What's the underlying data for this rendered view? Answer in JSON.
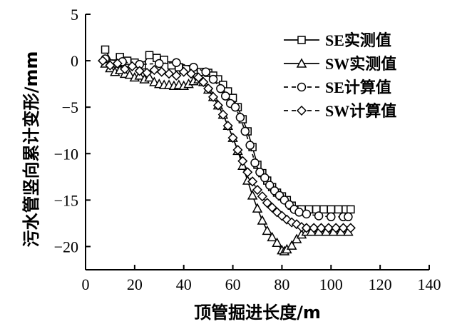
{
  "chart_data": {
    "type": "line",
    "xlabel": "顶管掘进长度/m",
    "ylabel": "污水管竖向累计变形/mm",
    "xlim": [
      0,
      140
    ],
    "ylim": [
      -22.5,
      5
    ],
    "xticks": [
      "0",
      "20",
      "40",
      "60",
      "80",
      "100",
      "120",
      "140"
    ],
    "yticks": [
      "5",
      "0",
      "−5",
      "−10",
      "−15",
      "−20"
    ],
    "xtick_values": [
      0,
      20,
      40,
      60,
      80,
      100,
      120,
      140
    ],
    "ytick_values": [
      5,
      0,
      -5,
      -10,
      -15,
      -20
    ],
    "grid": false,
    "legend_position": "top-right",
    "series": [
      {
        "name": "SE实测值",
        "marker": "square",
        "line": "solid",
        "x": [
          8,
          11,
          14,
          17,
          20,
          23,
          26,
          29,
          32,
          35,
          38,
          41,
          44,
          47,
          50,
          52,
          54,
          56,
          58,
          60,
          62,
          64,
          66,
          68,
          70,
          72,
          74,
          76,
          78,
          80,
          82,
          84,
          86,
          88,
          91,
          94,
          97,
          100,
          103,
          106,
          108
        ],
        "values": [
          1.2,
          -0.3,
          0.4,
          0.0,
          -0.2,
          -0.5,
          0.6,
          0.3,
          0.1,
          -0.5,
          -0.7,
          -0.9,
          -1.0,
          -1.2,
          -1.3,
          -1.6,
          -2.0,
          -2.6,
          -3.3,
          -4.0,
          -5.0,
          -6.3,
          -7.6,
          -9.3,
          -11.2,
          -12.1,
          -12.9,
          -13.6,
          -14.2,
          -14.6,
          -15.0,
          -15.6,
          -16.0,
          -16.0,
          -16.0,
          -16.0,
          -16.0,
          -16.0,
          -16.0,
          -16.0,
          -16.0
        ]
      },
      {
        "name": "SW实测值",
        "marker": "triangle",
        "line": "solid",
        "x": [
          8,
          10,
          12,
          14,
          16,
          18,
          20,
          22,
          24,
          26,
          28,
          30,
          32,
          34,
          36,
          38,
          40,
          42,
          44,
          46,
          48,
          50,
          52,
          54,
          56,
          58,
          60,
          62,
          64,
          66,
          68,
          70,
          72,
          74,
          76,
          78,
          80,
          81,
          82,
          84,
          86,
          88,
          90,
          92,
          95,
          98,
          101,
          104,
          107
        ],
        "values": [
          -0.3,
          -0.8,
          -1.2,
          -1.0,
          -1.4,
          -1.5,
          -1.8,
          -1.6,
          -2.0,
          -1.8,
          -2.3,
          -2.5,
          -2.6,
          -2.6,
          -2.7,
          -2.6,
          -2.7,
          -2.5,
          -2.2,
          -2.0,
          -2.3,
          -3.1,
          -3.9,
          -4.8,
          -5.8,
          -7.0,
          -8.3,
          -9.7,
          -11.3,
          -12.9,
          -14.5,
          -15.9,
          -17.2,
          -18.3,
          -19.0,
          -19.6,
          -20.4,
          -20.5,
          -20.3,
          -19.9,
          -19.2,
          -18.7,
          -18.4,
          -18.4,
          -18.4,
          -18.4,
          -18.4,
          -18.4,
          -18.4
        ]
      },
      {
        "name": "SE计算值",
        "marker": "circle",
        "line": "dashed",
        "x": [
          8,
          15,
          22,
          30,
          37,
          44,
          49,
          52,
          55,
          57,
          59,
          61,
          63,
          65,
          67,
          69,
          71,
          73,
          75,
          77,
          79,
          81,
          83,
          85,
          87,
          90,
          95,
          100,
          105,
          107
        ],
        "values": [
          0.2,
          -0.1,
          -0.4,
          -0.3,
          -0.2,
          -0.7,
          -1.2,
          -2.0,
          -3.0,
          -3.8,
          -4.6,
          -5.0,
          -6.1,
          -7.6,
          -9.1,
          -11.0,
          -12.0,
          -12.6,
          -13.4,
          -14.0,
          -14.5,
          -15.0,
          -15.5,
          -16.0,
          -16.3,
          -16.5,
          -16.7,
          -16.8,
          -16.8,
          -16.8
        ]
      },
      {
        "name": "SW计算值",
        "marker": "diamond",
        "line": "dashed",
        "x": [
          7,
          10,
          13,
          16,
          19,
          22,
          25,
          28,
          31,
          34,
          37,
          40,
          43,
          46,
          48,
          50,
          52,
          54,
          56,
          58,
          60,
          62,
          64,
          66,
          68,
          70,
          72,
          74,
          76,
          78,
          80,
          82,
          84,
          86,
          88,
          90,
          93,
          96,
          99,
          102,
          105,
          108
        ],
        "values": [
          0.0,
          -0.5,
          -0.3,
          -0.9,
          -0.6,
          -1.1,
          -1.3,
          -1.0,
          -1.2,
          -1.4,
          -1.6,
          -1.2,
          -1.4,
          -1.8,
          -2.3,
          -3.0,
          -3.9,
          -4.8,
          -5.8,
          -7.0,
          -8.3,
          -9.6,
          -10.8,
          -12.0,
          -13.0,
          -13.9,
          -14.6,
          -15.3,
          -15.8,
          -16.3,
          -16.7,
          -17.1,
          -17.4,
          -17.6,
          -17.9,
          -18.0,
          -18.0,
          -18.0,
          -18.0,
          -18.0,
          -18.0,
          -18.0
        ]
      }
    ]
  }
}
